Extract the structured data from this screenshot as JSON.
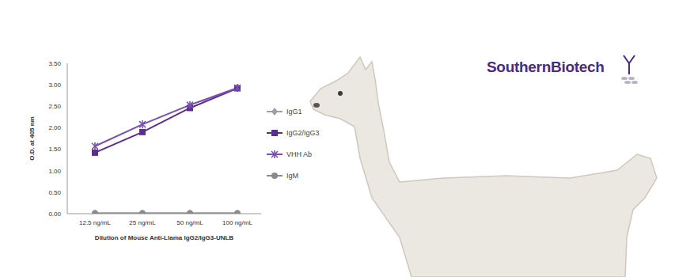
{
  "logo": "SouthernBiotech",
  "chart_data": {
    "type": "line",
    "x_label": "Dilution of Mouse Anti-Llama IgG2/IgG3-UNLB",
    "y_label": "O.D. at 405 nm",
    "categories": [
      "12.5 ng/mL",
      "25 ng/mL",
      "50 ng/mL",
      "100 ng/mL"
    ],
    "series": [
      {
        "name": "IgG1",
        "color": "#a0a0a0",
        "marker": "diamond",
        "values": [
          0.01,
          0.01,
          0.01,
          0.01
        ]
      },
      {
        "name": "IgG2/IgG3",
        "color": "#5c2d91",
        "marker": "square",
        "values": [
          1.42,
          1.9,
          2.46,
          2.92
        ]
      },
      {
        "name": "VHH Ab",
        "color": "#7b4fb0",
        "marker": "star",
        "values": [
          1.57,
          2.08,
          2.53,
          2.93
        ]
      },
      {
        "name": "IgM",
        "color": "#8a8a8a",
        "marker": "circle",
        "values": [
          0.01,
          0.01,
          0.01,
          0.01
        ]
      }
    ],
    "ylim": [
      0,
      3.5
    ],
    "yticks": [
      {
        "value": 0,
        "label": "0.00"
      },
      {
        "value": 0.5,
        "label": "0.50"
      },
      {
        "value": 1,
        "label": "1.00"
      },
      {
        "value": 1.5,
        "label": "1.50"
      },
      {
        "value": 2,
        "label": "2.00"
      },
      {
        "value": 2.5,
        "label": "2.50"
      },
      {
        "value": 3,
        "label": "3.00"
      },
      {
        "value": 3.5,
        "label": "3.50"
      }
    ],
    "grid": false,
    "legend": "right"
  }
}
